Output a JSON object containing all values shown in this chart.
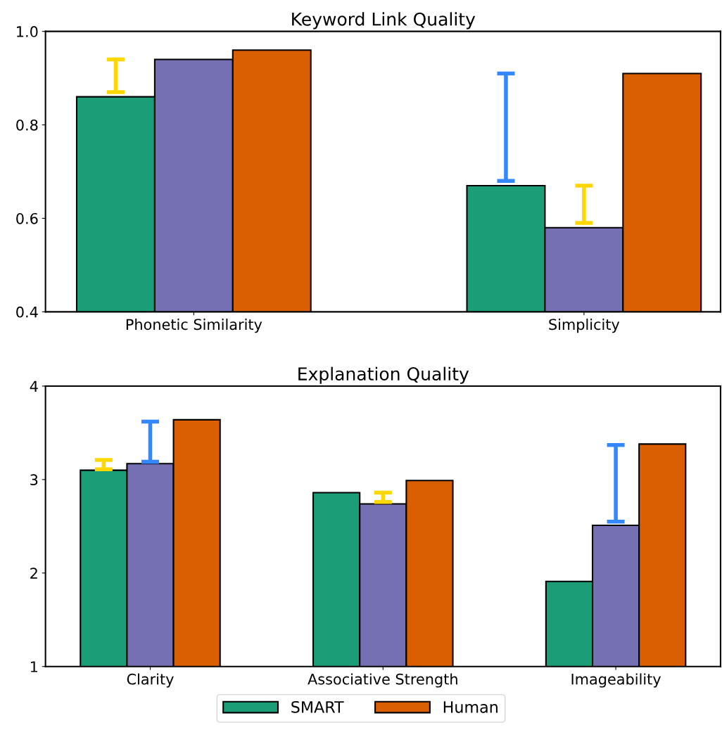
{
  "chart_data": [
    {
      "type": "bar",
      "title": "Keyword Link Quality",
      "categories": [
        "Phonetic Similarity",
        "Simplicity"
      ],
      "ylim": [
        0.4,
        1.0
      ],
      "yticks": [
        0.4,
        0.6,
        0.8,
        {
          "value": 1.0,
          "label": "1.0"
        }
      ],
      "grid": false,
      "legend": "bottom",
      "series": [
        {
          "name": "SMART",
          "color": "#1b9e77",
          "values": [
            0.86,
            0.67
          ],
          "errors": [
            [
              0.87,
              0.94
            ],
            [
              0.68,
              0.91
            ]
          ]
        },
        {
          "color": "#7570b3",
          "values": [
            0.94,
            0.58
          ],
          "errors": [
            null,
            [
              0.59,
              0.67
            ]
          ]
        },
        {
          "name": "Human",
          "color": "#d95f02",
          "values": [
            0.96,
            0.91
          ]
        }
      ]
    },
    {
      "type": "bar",
      "title": "Explanation Quality",
      "categories": [
        "Clarity",
        "Associative Strength",
        "Imageability"
      ],
      "ylim": [
        1,
        4
      ],
      "yticks": [
        1,
        2,
        3,
        4
      ],
      "grid": false,
      "legend": "bottom",
      "series": [
        {
          "name": "SMART",
          "color": "#1b9e77",
          "values": [
            3.1,
            2.86,
            1.91
          ],
          "errors": [
            [
              3.11,
              3.21
            ],
            null,
            null
          ]
        },
        {
          "color": "#7570b3",
          "values": [
            3.17,
            2.74,
            2.51
          ],
          "errors": [
            [
              3.19,
              3.62
            ],
            [
              2.76,
              2.86
            ],
            [
              2.55,
              3.37
            ]
          ]
        },
        {
          "name": "Human",
          "color": "#d95f02",
          "values": [
            3.64,
            2.99,
            3.38
          ]
        }
      ]
    }
  ]
}
